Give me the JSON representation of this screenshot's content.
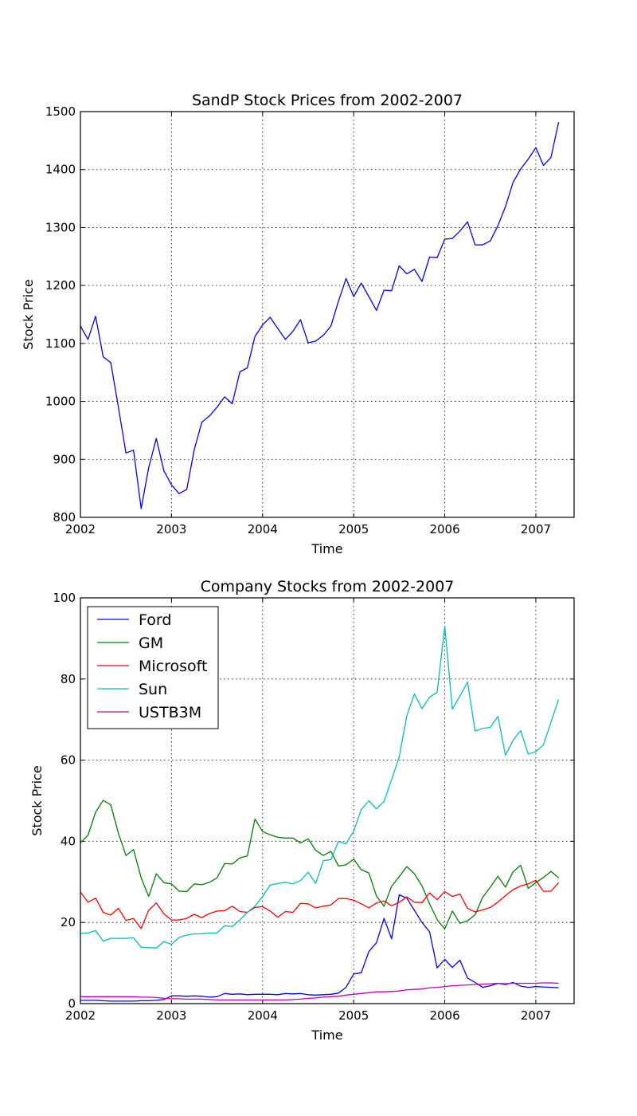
{
  "chart_data": [
    {
      "type": "line",
      "title": "SandP Stock Prices from 2002-2007",
      "xlabel": "Time",
      "ylabel": "Stock Price",
      "xlim": [
        2002.0,
        2007.42
      ],
      "ylim": [
        800,
        1500
      ],
      "xticks": [
        "2002",
        "2003",
        "2004",
        "2005",
        "2006",
        "2007"
      ],
      "yticks": [
        800,
        900,
        1000,
        1100,
        1200,
        1300,
        1400,
        1500
      ],
      "grid": true,
      "x_start": "2002-01",
      "x_step": "1 month",
      "series": [
        {
          "color": "#0000ff",
          "values": [
            1130,
            1107,
            1147,
            1077,
            1067,
            990,
            911,
            916,
            815,
            886,
            936,
            880,
            856,
            841,
            848,
            917,
            964,
            975,
            990,
            1008,
            996,
            1051,
            1058,
            1112,
            1132,
            1145,
            1126,
            1107,
            1121,
            1141,
            1101,
            1104,
            1114,
            1130,
            1173,
            1212,
            1181,
            1204,
            1181,
            1157,
            1192,
            1191,
            1234,
            1220,
            1228,
            1207,
            1249,
            1248,
            1280,
            1281,
            1294,
            1310,
            1270,
            1270,
            1277,
            1303,
            1336,
            1378,
            1401,
            1418,
            1438,
            1407,
            1421,
            1482
          ]
        }
      ]
    },
    {
      "type": "line",
      "title": "Company Stocks from 2002-2007",
      "xlabel": "Time",
      "ylabel": "Stock Price",
      "xlim": [
        2002.0,
        2007.42
      ],
      "ylim": [
        0,
        100
      ],
      "xticks": [
        "2002",
        "2003",
        "2004",
        "2005",
        "2006",
        "2007"
      ],
      "yticks": [
        0,
        20,
        40,
        60,
        80,
        100
      ],
      "grid": true,
      "legend": "top-left",
      "x_start": "2002-01",
      "x_step": "1 month",
      "series": [
        {
          "name": "Ford",
          "color": "#0000ff",
          "values": [
            0.8,
            0.8,
            0.8,
            0.7,
            0.6,
            0.6,
            0.6,
            0.6,
            0.7,
            0.7,
            0.8,
            1.0,
            1.9,
            1.9,
            1.8,
            1.9,
            1.8,
            1.6,
            1.7,
            2.5,
            2.3,
            2.4,
            2.2,
            2.3,
            2.3,
            2.3,
            2.2,
            2.5,
            2.4,
            2.5,
            2.2,
            2.1,
            2.2,
            2.3,
            2.6,
            4.0,
            7.3,
            7.6,
            12.8,
            15.0,
            21.0,
            16.0,
            26.8,
            26.0,
            23.0,
            20.0,
            17.7,
            8.8,
            10.9,
            8.9,
            10.7,
            6.3,
            5.2,
            4.0,
            4.4,
            5.0,
            4.7,
            5.2,
            4.3,
            4.0,
            4.2,
            4.1,
            4.0,
            3.9
          ]
        },
        {
          "name": "GM",
          "color": "#008000",
          "values": [
            39.6,
            41.5,
            47.2,
            50.1,
            49.0,
            42.0,
            36.5,
            38.0,
            31.0,
            26.4,
            32.0,
            29.8,
            29.5,
            27.7,
            27.6,
            29.5,
            29.3,
            29.9,
            31.0,
            34.5,
            34.4,
            35.9,
            36.4,
            45.5,
            42.4,
            41.6,
            41.0,
            40.8,
            40.8,
            39.6,
            40.6,
            37.8,
            36.5,
            37.5,
            33.9,
            34.2,
            35.6,
            33.0,
            32.2,
            26.5,
            24.0,
            28.9,
            31.3,
            33.8,
            32.0,
            29.0,
            24.6,
            20.7,
            18.4,
            22.8,
            19.8,
            20.4,
            21.9,
            26.2,
            28.7,
            31.4,
            28.7,
            32.5,
            34.1,
            28.4,
            29.8,
            31.1,
            32.6,
            31.0
          ]
        },
        {
          "name": "Microsoft",
          "color": "#ff0000",
          "values": [
            27.5,
            25.0,
            26.0,
            22.5,
            21.8,
            23.5,
            20.5,
            21.0,
            18.5,
            23.0,
            24.8,
            22.1,
            20.6,
            20.6,
            21.0,
            22.0,
            21.2,
            22.2,
            22.8,
            22.9,
            24.0,
            22.7,
            22.5,
            23.7,
            23.9,
            22.8,
            21.3,
            22.7,
            22.5,
            24.7,
            24.6,
            23.6,
            24.0,
            24.3,
            25.9,
            25.9,
            25.5,
            24.6,
            23.6,
            24.8,
            25.3,
            24.1,
            25.0,
            26.3,
            25.0,
            24.9,
            27.3,
            25.6,
            27.6,
            26.4,
            27.0,
            23.5,
            22.6,
            23.1,
            23.7,
            25.0,
            26.6,
            28.1,
            29.0,
            29.5,
            30.4,
            27.7,
            27.7,
            29.8
          ]
        },
        {
          "name": "Sun",
          "color": "#00bfbf",
          "values": [
            17.3,
            17.4,
            18.0,
            15.4,
            16.1,
            16.1,
            16.1,
            16.2,
            13.9,
            13.8,
            13.7,
            15.3,
            14.6,
            16.3,
            16.9,
            17.2,
            17.2,
            17.4,
            17.4,
            19.2,
            19.0,
            20.6,
            22.5,
            24.0,
            26.4,
            29.2,
            29.6,
            29.9,
            29.5,
            30.3,
            32.4,
            29.6,
            35.2,
            35.5,
            40.0,
            39.4,
            42.5,
            47.8,
            50.0,
            48.0,
            49.8,
            55.2,
            60.8,
            70.9,
            76.3,
            72.7,
            75.5,
            76.7,
            93.0,
            72.6,
            75.8,
            79.3,
            67.2,
            67.8,
            68.1,
            70.8,
            61.2,
            64.9,
            67.3,
            61.5,
            62.1,
            63.8,
            69.4,
            75.0
          ]
        },
        {
          "name": "USTB3M",
          "color": "#bf00bf",
          "values": [
            1.7,
            1.7,
            1.7,
            1.7,
            1.7,
            1.7,
            1.7,
            1.7,
            1.6,
            1.6,
            1.5,
            1.3,
            1.2,
            1.2,
            1.1,
            1.1,
            1.1,
            1.0,
            0.9,
            0.9,
            0.9,
            0.9,
            0.9,
            0.9,
            0.9,
            0.9,
            0.9,
            0.9,
            1.0,
            1.1,
            1.3,
            1.4,
            1.6,
            1.7,
            1.8,
            2.1,
            2.3,
            2.5,
            2.7,
            2.9,
            2.9,
            3.0,
            3.1,
            3.4,
            3.5,
            3.6,
            3.9,
            4.0,
            4.2,
            4.4,
            4.5,
            4.6,
            4.7,
            4.8,
            4.9,
            5.0,
            4.9,
            5.0,
            5.0,
            5.0,
            5.0,
            5.1,
            5.1,
            5.0
          ]
        }
      ]
    }
  ]
}
